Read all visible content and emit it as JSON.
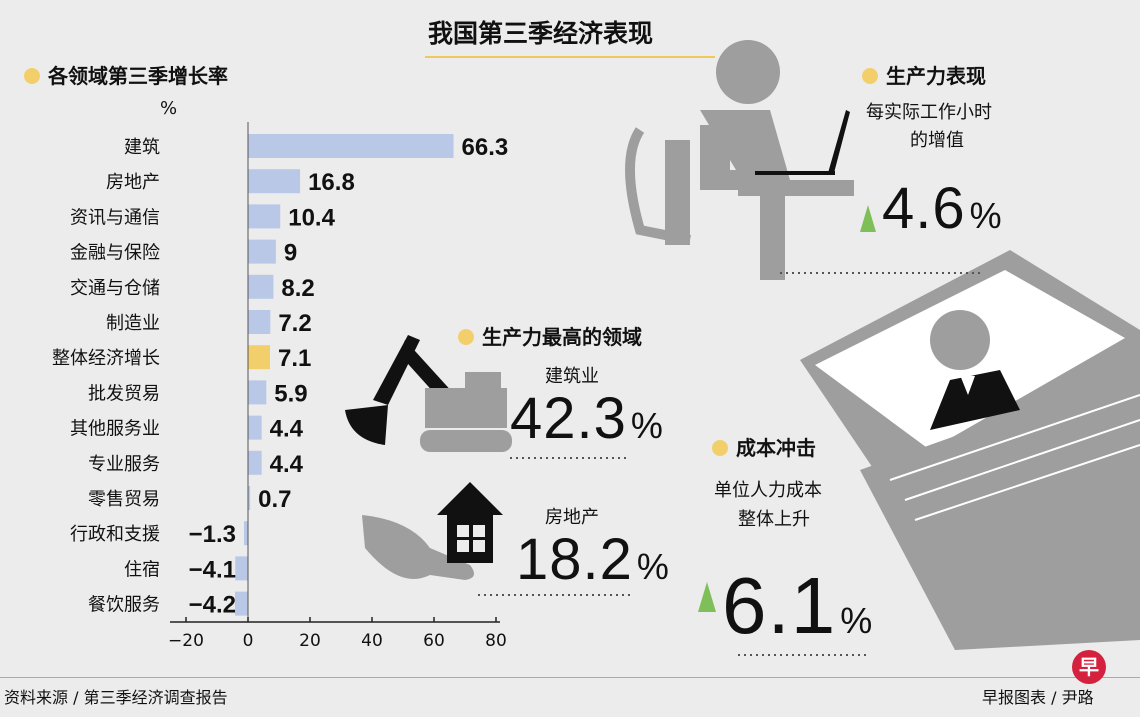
{
  "title": "我国第三季经济表现",
  "chart_data": {
    "type": "bar",
    "orientation": "horizontal",
    "title": "各领域第三季增长率",
    "unit": "%",
    "categories": [
      "建筑",
      "房地产",
      "资讯与通信",
      "金融与保险",
      "交通与仓储",
      "制造业",
      "整体经济增长",
      "批发贸易",
      "其他服务业",
      "专业服务",
      "零售贸易",
      "行政和支援",
      "住宿",
      "餐饮服务"
    ],
    "values": [
      66.3,
      16.8,
      10.4,
      9,
      8.2,
      7.2,
      7.1,
      5.9,
      4.4,
      4.4,
      0.7,
      -1.3,
      -4.1,
      -4.2
    ],
    "value_labels": [
      "66.3",
      "16.8",
      "10.4",
      "9",
      "8.2",
      "7.2",
      "7.1",
      "5.9",
      "4.4",
      "4.4",
      "0.7",
      "−1.3",
      "−4.1",
      "−4.2"
    ],
    "highlight_category": "整体经济增长",
    "xlim": [
      -20,
      80
    ],
    "xticks": [
      "−20",
      "0",
      "20",
      "40",
      "60",
      "80"
    ],
    "bar_color": "#b8c8e6",
    "highlight_color": "#f3cf6b"
  },
  "productivity": {
    "heading": "生产力表现",
    "desc_line1": "每实际工作小时",
    "desc_line2": "的增值",
    "value": "4.6",
    "unit": "%"
  },
  "top_sectors": {
    "heading": "生产力最高的领域",
    "items": [
      {
        "label": "建筑业",
        "value": "42.3",
        "unit": "%"
      },
      {
        "label": "房地产",
        "value": "18.2",
        "unit": "%"
      }
    ]
  },
  "cost": {
    "heading": "成本冲击",
    "desc_line1": "单位人力成本",
    "desc_line2": "整体上升",
    "value": "6.1",
    "unit": "%"
  },
  "footer": {
    "source": "资料来源 / 第三季经济调查报告",
    "credit": "早报图表 / 尹路",
    "logo": "早"
  },
  "colors": {
    "accent": "#f3cf6b",
    "arrow": "#7fbf5a",
    "illustration": "#9e9e9e",
    "logo": "#d4213d"
  },
  "icons": [
    "worker-at-laptop-icon",
    "excavator-icon",
    "house-icon",
    "hand-icon",
    "laptop-manager-icon",
    "growth-arrow-icon"
  ]
}
